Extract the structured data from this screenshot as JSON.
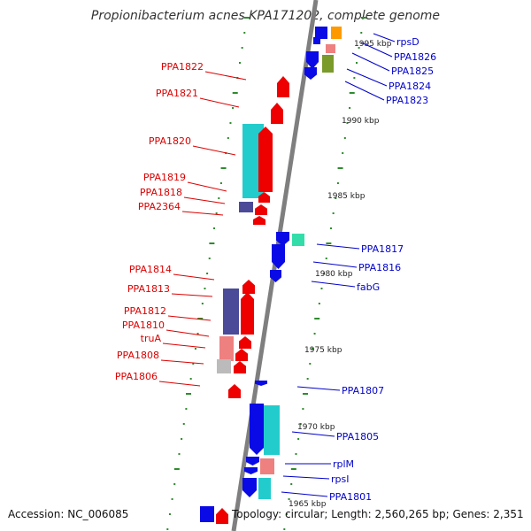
{
  "title": "Propionibacterium acnes KPA171202, complete genome",
  "accession": "Accession: NC_006085",
  "summary": "Topology: circular; Length: 2,560,265 bp; Genes: 2,351",
  "colors": {
    "backbone": "#7f7f7f",
    "tick": "#2e8b2e",
    "forward_label": "#dd0000",
    "reverse_label": "#0000cc",
    "scale_text": "#222222"
  },
  "scale_labels": [
    {
      "text": "1995 kbp",
      "kbp": 1995
    },
    {
      "text": "1990 kbp",
      "kbp": 1990
    },
    {
      "text": "1985 kbp",
      "kbp": 1985
    },
    {
      "text": "1980 kbp",
      "kbp": 1980
    },
    {
      "text": "1975 kbp",
      "kbp": 1975
    },
    {
      "text": "1970 kbp",
      "kbp": 1970
    },
    {
      "text": "1965 kbp",
      "kbp": 1965
    }
  ],
  "left_genes": [
    {
      "name": "PPA1822"
    },
    {
      "name": "PPA1821"
    },
    {
      "name": "PPA1820"
    },
    {
      "name": "PPA1819"
    },
    {
      "name": "PPA1818"
    },
    {
      "name": "PPA2364"
    },
    {
      "name": "PPA1814"
    },
    {
      "name": "PPA1813"
    },
    {
      "name": "PPA1812"
    },
    {
      "name": "PPA1810"
    },
    {
      "name": "truA"
    },
    {
      "name": "PPA1808"
    },
    {
      "name": "PPA1806"
    }
  ],
  "right_genes": [
    {
      "name": "rpsD"
    },
    {
      "name": "PPA1826"
    },
    {
      "name": "PPA1825"
    },
    {
      "name": "PPA1824"
    },
    {
      "name": "PPA1823"
    },
    {
      "name": "PPA1817"
    },
    {
      "name": "PPA1816"
    },
    {
      "name": "fabG"
    },
    {
      "name": "PPA1807"
    },
    {
      "name": "PPA1805"
    },
    {
      "name": "rplM"
    },
    {
      "name": "rpsI"
    },
    {
      "name": "PPA1801"
    }
  ]
}
